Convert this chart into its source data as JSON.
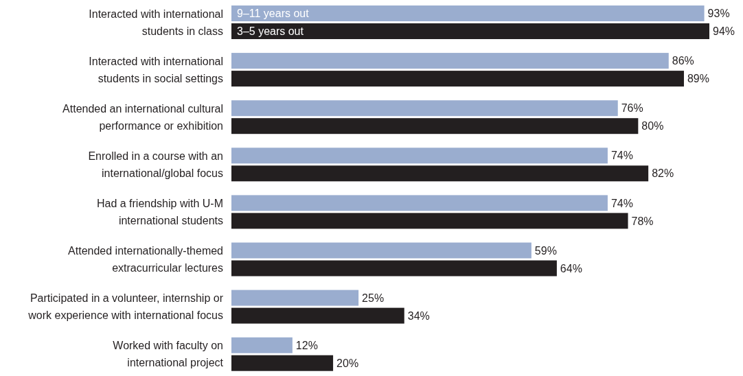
{
  "chart_data": {
    "type": "bar",
    "orientation": "horizontal",
    "categories": [
      "Interacted with international students in class",
      "Interacted with international students in social settings",
      "Attended an international cultural performance or exhibition",
      "Enrolled in a course with an international/global focus",
      "Had a friendship with U-M international students",
      "Attended internationally-themed extracurricular lectures",
      "Participated in a volunteer, internship or work experience with international focus",
      "Worked with faculty on international project"
    ],
    "series": [
      {
        "name": "9–11 years out",
        "color": "#9aadcf",
        "values": [
          93,
          86,
          76,
          74,
          74,
          59,
          25,
          12
        ],
        "value_labels": [
          "93%",
          "86%",
          "76%",
          "74%",
          "74%",
          "59%",
          "25%",
          "12%"
        ]
      },
      {
        "name": "3–5 years out",
        "color": "#231f20",
        "values": [
          94,
          89,
          80,
          82,
          78,
          64,
          34,
          20
        ],
        "value_labels": [
          "94%",
          "89%",
          "80%",
          "82%",
          "78%",
          "64%",
          "34%",
          "20%"
        ]
      }
    ]
  }
}
